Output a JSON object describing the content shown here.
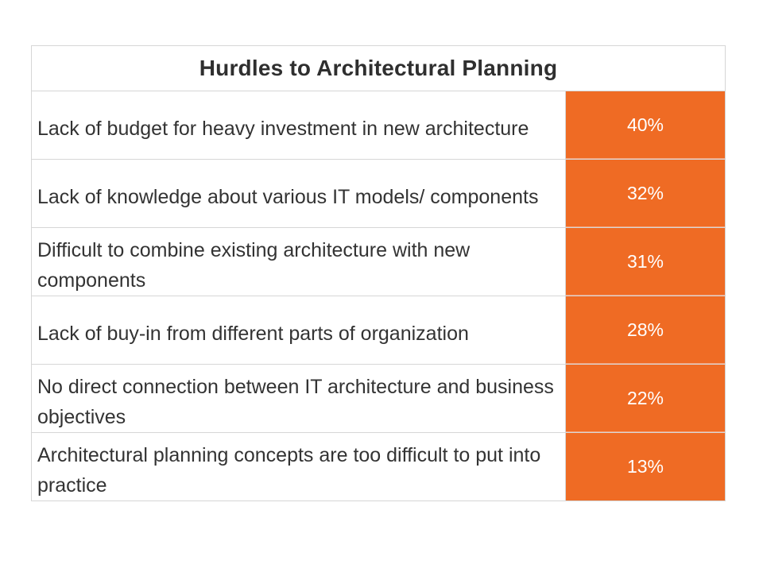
{
  "chart_data": {
    "type": "table",
    "title": "Hurdles to Architectural Planning",
    "accent_color": "#ef6b24",
    "rows": [
      {
        "label": "Lack of budget for heavy investment in new architecture",
        "value_text": "40%",
        "value": 40
      },
      {
        "label": "Lack of knowledge about various IT models/ components",
        "value_text": "32%",
        "value": 32
      },
      {
        "label": "Difficult to combine existing architecture with new components",
        "value_text": "31%",
        "value": 31
      },
      {
        "label": "Lack of buy-in from different parts of organization",
        "value_text": "28%",
        "value": 28
      },
      {
        "label": "No direct connection between IT architecture and business objectives",
        "value_text": "22%",
        "value": 22
      },
      {
        "label": "Architectural planning concepts are too difficult to put into practice",
        "value_text": "13%",
        "value": 13
      }
    ]
  }
}
